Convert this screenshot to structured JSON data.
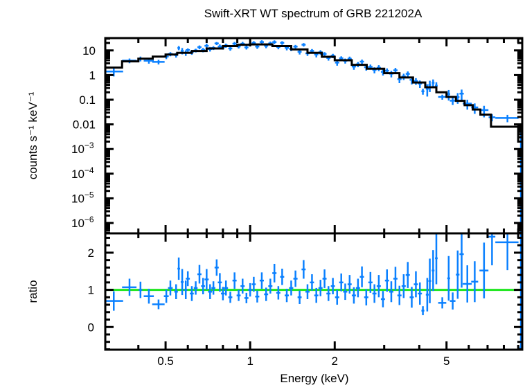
{
  "chart_data": {
    "type": "scatter",
    "title": "Swift-XRT WT spectrum of GRB 221202A",
    "xlabel": "Energy (keV)",
    "x_scale": "log",
    "xlim": [
      0.305,
      9.3
    ],
    "x_ticks": [
      {
        "v": 0.5,
        "label": "0.5"
      },
      {
        "v": 1,
        "label": "1"
      },
      {
        "v": 2,
        "label": "2"
      },
      {
        "v": 5,
        "label": "5"
      }
    ],
    "colors": {
      "data": "#0a80ff",
      "model": "#000000",
      "unity": "#1ee61e",
      "axes": "#000000"
    },
    "panels": {
      "spectrum": {
        "ylabel": "counts s⁻¹ keV⁻¹",
        "y_scale": "log",
        "ylim": [
          3.8e-07,
          31.6
        ],
        "y_ticks": [
          {
            "v": 10,
            "label": "10",
            "exp": ""
          },
          {
            "v": 1,
            "label": "1",
            "exp": ""
          },
          {
            "v": 0.1,
            "label": "0.1",
            "exp": ""
          },
          {
            "v": 0.01,
            "label": "0.01",
            "exp": ""
          },
          {
            "v": 0.001,
            "label": "10",
            "exp": "−3"
          },
          {
            "v": 0.0001,
            "label": "10",
            "exp": "−4"
          },
          {
            "v": 1e-05,
            "label": "10",
            "exp": "−5"
          },
          {
            "v": 1e-06,
            "label": "10",
            "exp": "−6"
          }
        ]
      },
      "ratio": {
        "ylabel": "ratio",
        "y_scale": "linear",
        "ylim": [
          -0.61,
          2.52
        ],
        "y_ticks": [
          {
            "v": 0,
            "label": "0"
          },
          {
            "v": 1,
            "label": "1"
          },
          {
            "v": 2,
            "label": "2"
          }
        ],
        "reference_line": 1
      }
    },
    "model_bins": [
      [
        0.305,
        0.35,
        2.0
      ],
      [
        0.35,
        0.4,
        3.6
      ],
      [
        0.4,
        0.45,
        4.6
      ],
      [
        0.45,
        0.5,
        5.6
      ],
      [
        0.5,
        0.55,
        6.8
      ],
      [
        0.55,
        0.62,
        8.0
      ],
      [
        0.62,
        0.7,
        9.5
      ],
      [
        0.7,
        0.8,
        12
      ],
      [
        0.8,
        0.9,
        15
      ],
      [
        0.9,
        1.0,
        17
      ],
      [
        1.0,
        1.2,
        17.5
      ],
      [
        1.2,
        1.4,
        15
      ],
      [
        1.4,
        1.6,
        11
      ],
      [
        1.6,
        1.8,
        8
      ],
      [
        1.8,
        2.0,
        5.5
      ],
      [
        2.0,
        2.3,
        4.0
      ],
      [
        2.3,
        2.6,
        2.6
      ],
      [
        2.6,
        3.0,
        1.8
      ],
      [
        3.0,
        3.4,
        1.2
      ],
      [
        3.4,
        3.8,
        0.8
      ],
      [
        3.8,
        4.2,
        0.5
      ],
      [
        4.2,
        4.6,
        0.32
      ],
      [
        4.6,
        5.0,
        0.2
      ],
      [
        5.0,
        5.4,
        0.13
      ],
      [
        5.4,
        5.8,
        0.09
      ],
      [
        5.8,
        6.2,
        0.06
      ],
      [
        6.2,
        6.6,
        0.04
      ],
      [
        6.6,
        7.2,
        0.025
      ],
      [
        7.2,
        9.0,
        0.008
      ],
      [
        9.0,
        9.3,
        0.002
      ]
    ],
    "points_columns": [
      "energy_keV",
      "energy_halfwidth_keV",
      "ratio",
      "ratio_err"
    ],
    "points": [
      [
        0.327,
        0.026,
        0.7,
        0.26
      ],
      [
        0.372,
        0.022,
        1.07,
        0.23
      ],
      [
        0.407,
        0.006,
        1.0,
        0.22
      ],
      [
        0.436,
        0.018,
        0.83,
        0.2
      ],
      [
        0.472,
        0.024,
        0.61,
        0.13
      ],
      [
        0.503,
        0.01,
        0.83,
        0.18
      ],
      [
        0.52,
        0.01,
        1.05,
        0.2
      ],
      [
        0.545,
        0.008,
        0.95,
        0.2
      ],
      [
        0.557,
        0.006,
        1.57,
        0.3
      ],
      [
        0.573,
        0.007,
        1.21,
        0.35
      ],
      [
        0.59,
        0.007,
        1.0,
        0.25
      ],
      [
        0.6,
        0.01,
        1.3,
        0.2
      ],
      [
        0.62,
        0.01,
        0.9,
        0.2
      ],
      [
        0.64,
        0.01,
        1.05,
        0.18
      ],
      [
        0.66,
        0.011,
        1.42,
        0.25
      ],
      [
        0.68,
        0.011,
        1.1,
        0.22
      ],
      [
        0.7,
        0.012,
        1.28,
        0.28
      ],
      [
        0.72,
        0.012,
        0.95,
        0.2
      ],
      [
        0.74,
        0.012,
        1.05,
        0.18
      ],
      [
        0.76,
        0.013,
        1.6,
        0.22
      ],
      [
        0.78,
        0.013,
        1.2,
        0.25
      ],
      [
        0.8,
        0.013,
        0.9,
        0.18
      ],
      [
        0.82,
        0.014,
        1.05,
        0.2
      ],
      [
        0.85,
        0.014,
        0.8,
        0.15
      ],
      [
        0.88,
        0.015,
        1.25,
        0.22
      ],
      [
        0.91,
        0.015,
        0.85,
        0.15
      ],
      [
        0.94,
        0.016,
        1.1,
        0.2
      ],
      [
        0.97,
        0.016,
        0.78,
        0.14
      ],
      [
        1.0,
        0.017,
        1.0,
        0.18
      ],
      [
        1.03,
        0.017,
        1.15,
        0.2
      ],
      [
        1.06,
        0.018,
        0.82,
        0.16
      ],
      [
        1.1,
        0.019,
        1.25,
        0.22
      ],
      [
        1.14,
        0.019,
        0.88,
        0.18
      ],
      [
        1.18,
        0.02,
        1.1,
        0.2
      ],
      [
        1.22,
        0.021,
        1.45,
        0.25
      ],
      [
        1.26,
        0.021,
        0.92,
        0.18
      ],
      [
        1.3,
        0.022,
        1.35,
        0.22
      ],
      [
        1.35,
        0.023,
        0.85,
        0.18
      ],
      [
        1.4,
        0.024,
        1.05,
        0.2
      ],
      [
        1.45,
        0.025,
        1.3,
        0.22
      ],
      [
        1.5,
        0.025,
        0.8,
        0.18
      ],
      [
        1.55,
        0.026,
        1.55,
        0.25
      ],
      [
        1.6,
        0.027,
        0.95,
        0.2
      ],
      [
        1.66,
        0.028,
        1.2,
        0.22
      ],
      [
        1.72,
        0.029,
        0.85,
        0.2
      ],
      [
        1.78,
        0.03,
        1.05,
        0.22
      ],
      [
        1.84,
        0.031,
        1.3,
        0.25
      ],
      [
        1.9,
        0.032,
        0.9,
        0.2
      ],
      [
        1.97,
        0.033,
        1.1,
        0.22
      ],
      [
        2.04,
        0.035,
        0.8,
        0.2
      ],
      [
        2.11,
        0.036,
        1.2,
        0.24
      ],
      [
        2.18,
        0.037,
        0.95,
        0.22
      ],
      [
        2.26,
        0.038,
        1.15,
        0.25
      ],
      [
        2.34,
        0.04,
        0.85,
        0.22
      ],
      [
        2.42,
        0.041,
        1.05,
        0.25
      ],
      [
        2.5,
        0.043,
        1.35,
        0.28
      ],
      [
        2.59,
        0.044,
        0.8,
        0.22
      ],
      [
        2.68,
        0.046,
        1.2,
        0.28
      ],
      [
        2.77,
        0.047,
        0.9,
        0.25
      ],
      [
        2.87,
        0.049,
        1.1,
        0.3
      ],
      [
        2.97,
        0.05,
        0.75,
        0.22
      ],
      [
        3.07,
        0.052,
        1.25,
        0.3
      ],
      [
        3.18,
        0.054,
        0.95,
        0.28
      ],
      [
        3.29,
        0.056,
        1.3,
        0.32
      ],
      [
        3.4,
        0.058,
        0.85,
        0.26
      ],
      [
        3.52,
        0.06,
        1.1,
        0.32
      ],
      [
        3.64,
        0.062,
        1.4,
        0.35
      ],
      [
        3.76,
        0.064,
        0.8,
        0.28
      ],
      [
        3.89,
        0.066,
        1.15,
        0.35
      ],
      [
        4.02,
        0.068,
        0.9,
        0.3
      ],
      [
        4.12,
        0.05,
        0.44,
        0.12
      ],
      [
        4.27,
        0.05,
        0.87,
        0.45
      ],
      [
        4.36,
        0.05,
        1.24,
        0.6
      ],
      [
        4.48,
        0.05,
        1.52,
        0.55
      ],
      [
        4.6,
        0.05,
        1.85,
        0.7
      ],
      [
        4.83,
        0.16,
        0.65,
        0.15
      ],
      [
        5.09,
        0.06,
        1.31,
        0.6
      ],
      [
        5.26,
        0.12,
        0.7,
        0.23
      ],
      [
        5.48,
        0.08,
        1.41,
        0.65
      ],
      [
        5.66,
        0.1,
        1.96,
        0.9
      ],
      [
        5.93,
        0.22,
        1.16,
        0.5
      ],
      [
        6.3,
        0.18,
        1.22,
        0.55
      ],
      [
        6.8,
        0.25,
        1.52,
        0.75
      ],
      [
        7.26,
        0.2,
        2.43,
        0.77
      ],
      [
        8.24,
        0.78,
        2.28,
        0.75
      ],
      [
        9.2,
        0.1,
        -0.55,
        3.2
      ]
    ]
  }
}
